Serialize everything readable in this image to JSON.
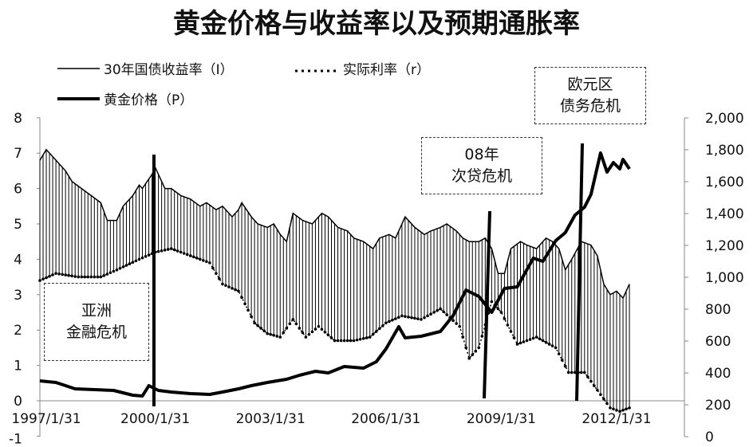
{
  "chart_data": {
    "type": "line",
    "title": "黄金价格与收益率以及预期通胀率",
    "legend": [
      "30年国债收益率（I）",
      "实际利率（r）",
      "黄金价格（P）"
    ],
    "legend_placement": "top-left",
    "x_ticks": [
      "1997/1/31",
      "2000/1/31",
      "2003/1/31",
      "2006/1/31",
      "2009/1/31",
      "2012/1/31"
    ],
    "y_left": {
      "range": [
        -1,
        8
      ],
      "ticks": [
        "-1",
        "0",
        "1",
        "2",
        "3",
        "4",
        "5",
        "6",
        "7",
        "8"
      ]
    },
    "y_right": {
      "range": [
        0,
        2000
      ],
      "ticks": [
        "0",
        "200",
        "400",
        "600",
        "800",
        "1,000",
        "1,200",
        "1,400",
        "1,600",
        "1,800",
        "2,000"
      ]
    },
    "grid": false,
    "colors": {
      "lines": "#000000"
    },
    "series": [
      {
        "name": "30年国债收益率（I）",
        "axis": "left",
        "style": "thin-solid",
        "points": [
          [
            "1997-01",
            6.8
          ],
          [
            "1997-03",
            7.1
          ],
          [
            "1997-05",
            6.9
          ],
          [
            "1997-09",
            6.5
          ],
          [
            "1997-11",
            6.2
          ],
          [
            "1998-02",
            6.0
          ],
          [
            "1998-05",
            5.8
          ],
          [
            "1998-08",
            5.6
          ],
          [
            "1998-10",
            5.1
          ],
          [
            "1999-01",
            5.1
          ],
          [
            "1999-03",
            5.5
          ],
          [
            "1999-06",
            5.8
          ],
          [
            "1999-08",
            6.1
          ],
          [
            "1999-09",
            6.0
          ],
          [
            "1999-12",
            6.4
          ],
          [
            "2000-01",
            6.6
          ],
          [
            "2000-04",
            6.0
          ],
          [
            "2000-06",
            6.0
          ],
          [
            "2000-09",
            5.8
          ],
          [
            "2000-12",
            5.7
          ],
          [
            "2001-03",
            5.5
          ],
          [
            "2001-05",
            5.6
          ],
          [
            "2001-08",
            5.4
          ],
          [
            "2001-10",
            5.5
          ],
          [
            "2002-01",
            5.2
          ],
          [
            "2002-03",
            5.4
          ],
          [
            "2002-04",
            5.6
          ],
          [
            "2002-07",
            5.2
          ],
          [
            "2002-09",
            5.0
          ],
          [
            "2002-12",
            4.9
          ],
          [
            "2003-02",
            5.0
          ],
          [
            "2003-04",
            4.7
          ],
          [
            "2003-06",
            4.5
          ],
          [
            "2003-08",
            5.3
          ],
          [
            "2003-11",
            5.1
          ],
          [
            "2004-02",
            5.0
          ],
          [
            "2004-05",
            5.3
          ],
          [
            "2004-07",
            5.2
          ],
          [
            "2004-10",
            4.9
          ],
          [
            "2005-01",
            4.8
          ],
          [
            "2005-03",
            4.6
          ],
          [
            "2005-06",
            4.5
          ],
          [
            "2005-09",
            4.3
          ],
          [
            "2005-11",
            4.6
          ],
          [
            "2006-02",
            4.7
          ],
          [
            "2006-04",
            4.6
          ],
          [
            "2006-06",
            5.0
          ],
          [
            "2006-07",
            5.2
          ],
          [
            "2006-10",
            4.9
          ],
          [
            "2007-01",
            4.7
          ],
          [
            "2007-03",
            4.8
          ],
          [
            "2007-06",
            4.9
          ],
          [
            "2007-08",
            5.0
          ],
          [
            "2007-11",
            4.8
          ],
          [
            "2008-01",
            4.6
          ],
          [
            "2008-03",
            4.5
          ],
          [
            "2008-06",
            4.5
          ],
          [
            "2008-08",
            4.6
          ],
          [
            "2008-10",
            4.3
          ],
          [
            "2008-12",
            3.6
          ],
          [
            "2009-02",
            3.6
          ],
          [
            "2009-04",
            4.3
          ],
          [
            "2009-07",
            4.5
          ],
          [
            "2009-09",
            4.4
          ],
          [
            "2009-12",
            4.3
          ],
          [
            "2010-03",
            4.6
          ],
          [
            "2010-05",
            4.5
          ],
          [
            "2010-07",
            4.3
          ],
          [
            "2010-09",
            3.7
          ],
          [
            "2010-11",
            4.0
          ],
          [
            "2011-02",
            4.5
          ],
          [
            "2011-05",
            4.4
          ],
          [
            "2011-07",
            4.1
          ],
          [
            "2011-09",
            3.3
          ],
          [
            "2011-11",
            3.0
          ],
          [
            "2012-01",
            3.1
          ],
          [
            "2012-03",
            2.9
          ],
          [
            "2012-05",
            3.3
          ]
        ]
      },
      {
        "name": "实际利率（r）",
        "axis": "left",
        "style": "dotted",
        "points": [
          [
            "1997-01",
            3.4
          ],
          [
            "1997-06",
            3.6
          ],
          [
            "1998-01",
            3.5
          ],
          [
            "1998-08",
            3.5
          ],
          [
            "1999-01",
            3.7
          ],
          [
            "1999-08",
            4.0
          ],
          [
            "2000-01",
            4.2
          ],
          [
            "2000-06",
            4.3
          ],
          [
            "2000-12",
            4.1
          ],
          [
            "2001-06",
            3.9
          ],
          [
            "2001-10",
            3.3
          ],
          [
            "2002-03",
            3.1
          ],
          [
            "2002-08",
            2.2
          ],
          [
            "2002-12",
            1.9
          ],
          [
            "2003-04",
            1.8
          ],
          [
            "2003-08",
            2.3
          ],
          [
            "2003-12",
            1.8
          ],
          [
            "2004-04",
            2.1
          ],
          [
            "2004-09",
            1.7
          ],
          [
            "2005-03",
            1.7
          ],
          [
            "2005-08",
            1.8
          ],
          [
            "2006-01",
            2.2
          ],
          [
            "2006-06",
            2.4
          ],
          [
            "2006-12",
            2.3
          ],
          [
            "2007-06",
            2.6
          ],
          [
            "2007-12",
            2.1
          ],
          [
            "2008-03",
            1.2
          ],
          [
            "2008-06",
            1.5
          ],
          [
            "2008-10",
            2.8
          ],
          [
            "2009-01",
            2.5
          ],
          [
            "2009-06",
            1.6
          ],
          [
            "2009-12",
            1.8
          ],
          [
            "2010-06",
            1.5
          ],
          [
            "2010-10",
            0.8
          ],
          [
            "2011-03",
            0.8
          ],
          [
            "2011-07",
            0.3
          ],
          [
            "2011-11",
            -0.2
          ],
          [
            "2012-02",
            -0.3
          ],
          [
            "2012-05",
            -0.2
          ]
        ]
      },
      {
        "name": "黄金价格（P）",
        "axis": "right",
        "style": "thick-solid",
        "points": [
          [
            "1997-01",
            350
          ],
          [
            "1997-06",
            340
          ],
          [
            "1997-12",
            300
          ],
          [
            "1998-06",
            295
          ],
          [
            "1998-12",
            290
          ],
          [
            "1999-06",
            260
          ],
          [
            "1999-09",
            255
          ],
          [
            "1999-11",
            320
          ],
          [
            "2000-02",
            290
          ],
          [
            "2000-06",
            280
          ],
          [
            "2000-12",
            270
          ],
          [
            "2001-06",
            265
          ],
          [
            "2001-10",
            280
          ],
          [
            "2002-03",
            300
          ],
          [
            "2002-07",
            320
          ],
          [
            "2002-12",
            340
          ],
          [
            "2003-03",
            350
          ],
          [
            "2003-06",
            360
          ],
          [
            "2003-10",
            385
          ],
          [
            "2004-03",
            410
          ],
          [
            "2004-07",
            400
          ],
          [
            "2004-12",
            440
          ],
          [
            "2005-06",
            430
          ],
          [
            "2005-10",
            470
          ],
          [
            "2006-01",
            550
          ],
          [
            "2006-05",
            690
          ],
          [
            "2006-07",
            620
          ],
          [
            "2006-12",
            630
          ],
          [
            "2007-06",
            660
          ],
          [
            "2007-10",
            760
          ],
          [
            "2008-02",
            920
          ],
          [
            "2008-06",
            880
          ],
          [
            "2008-10",
            780
          ],
          [
            "2009-02",
            930
          ],
          [
            "2009-06",
            940
          ],
          [
            "2009-11",
            1120
          ],
          [
            "2010-02",
            1100
          ],
          [
            "2010-06",
            1230
          ],
          [
            "2010-09",
            1280
          ],
          [
            "2010-12",
            1390
          ],
          [
            "2011-03",
            1440
          ],
          [
            "2011-05",
            1520
          ],
          [
            "2011-08",
            1780
          ],
          [
            "2011-10",
            1660
          ],
          [
            "2011-12",
            1720
          ],
          [
            "2012-02",
            1680
          ],
          [
            "2012-03",
            1740
          ],
          [
            "2012-05",
            1680
          ]
        ]
      }
    ],
    "annotations": [
      {
        "lines": [
          "亚洲",
          "金融危机"
        ],
        "date": "1999-12"
      },
      {
        "lines": [
          "08年",
          "次贷危机"
        ],
        "date": "2008-09"
      },
      {
        "lines": [
          "欧元区",
          "债务危机"
        ],
        "date": "2011-07"
      }
    ]
  }
}
